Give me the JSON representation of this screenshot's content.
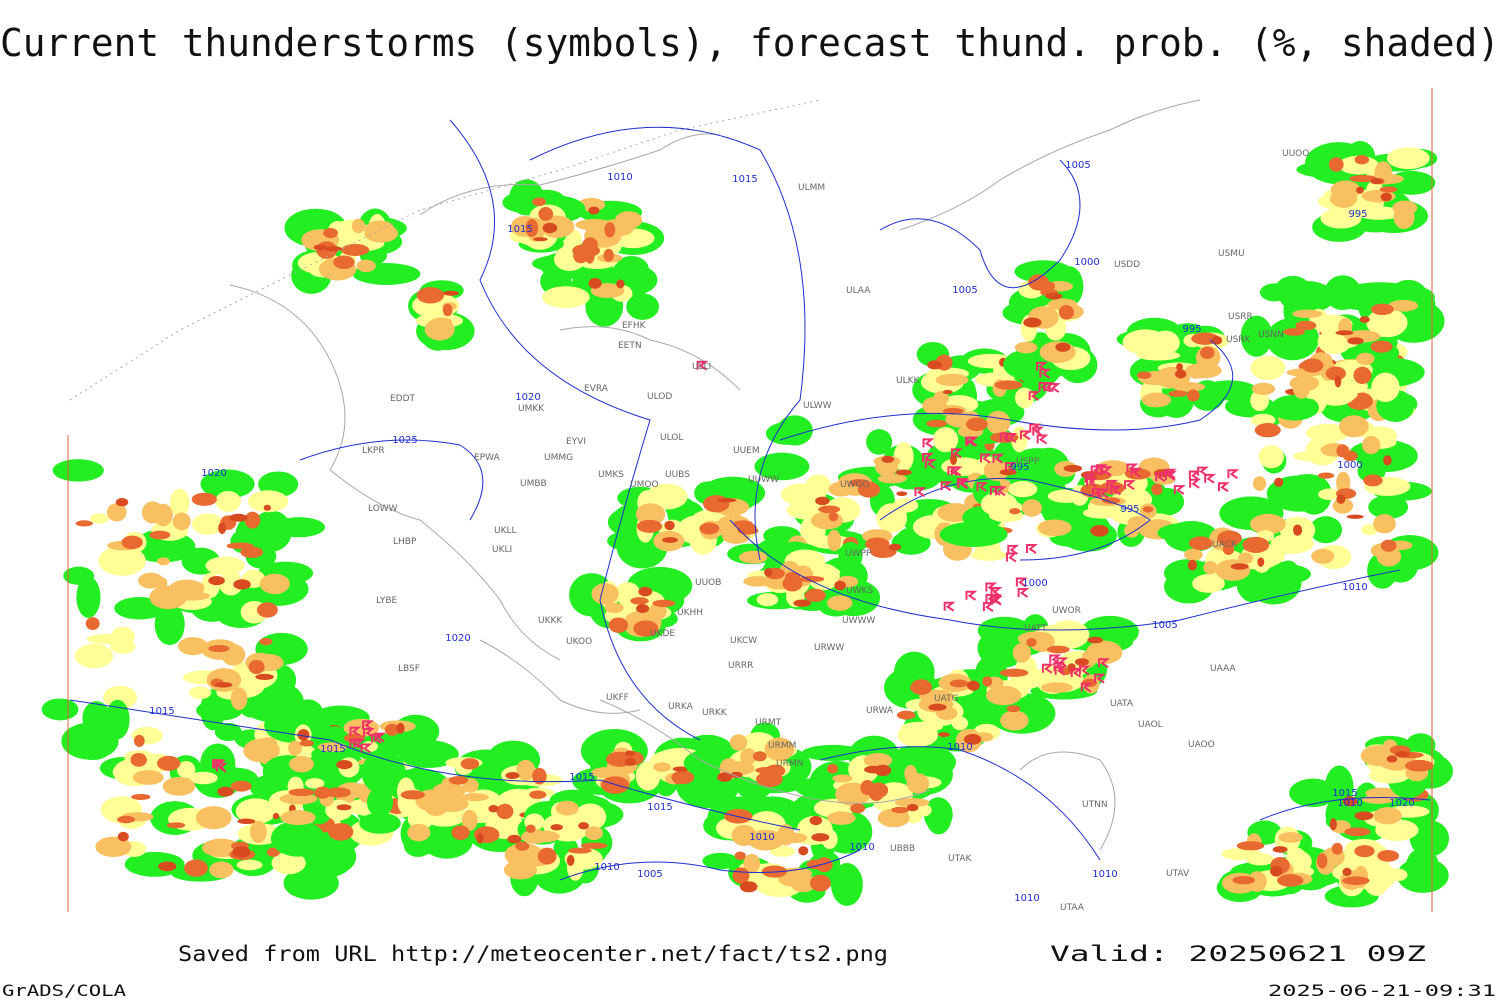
{
  "header": {
    "title": "Current thunderstorms (symbols), forecast thund. prob. (%, shaded)"
  },
  "map": {
    "isobar_labels": [
      1010,
      1015,
      1015,
      1020,
      1025,
      1020,
      1005,
      1000,
      1005,
      995,
      995,
      995,
      1000,
      1000,
      1005,
      1010,
      1020,
      1015,
      1015,
      1010,
      1015,
      1015,
      1010,
      1010,
      1010,
      1005,
      1010,
      1010,
      995,
      1015,
      1010,
      1020
    ],
    "stations": [
      "EFHK",
      "EETN",
      "ULLI",
      "EVRA",
      "ULOD",
      "EDDT",
      "UMKK",
      "ULOL",
      "EYVI",
      "LKPR",
      "EPWA",
      "UMMG",
      "UUEM",
      "UMKS",
      "UUBS",
      "UMOO",
      "UMBB",
      "UUWW",
      "ULWW",
      "ULAA",
      "ULMM",
      "LOWW",
      "LHBP",
      "UKLL",
      "UKLI",
      "LYBE",
      "UUOB",
      "UKHH",
      "UKDE",
      "UKKK",
      "UKOO",
      "LBSF",
      "UKFF",
      "URKA",
      "URKK",
      "URMT",
      "URMM",
      "URMN",
      "URRR",
      "UKCW",
      "URWW",
      "UWKS",
      "UWPP",
      "UWGG",
      "UWWW",
      "UATG",
      "URWA",
      "UWOR",
      "UATT",
      "UACK",
      "UAOO",
      "UAOL",
      "UATA",
      "UTNN",
      "UTAK",
      "UBBB",
      "UTAV",
      "UTAA",
      "UAAA",
      "USPP",
      "USDD",
      "USMU",
      "USRR",
      "USRK",
      "USNN",
      "ULKK",
      "UUOO"
    ]
  },
  "footer": {
    "source": "Saved from URL http://meteocenter.net/fact/ts2.png",
    "valid": "Valid: 20250621 09Z",
    "software": "GrADS/COLA",
    "timestamp": "2025-06-21-09:31"
  }
}
